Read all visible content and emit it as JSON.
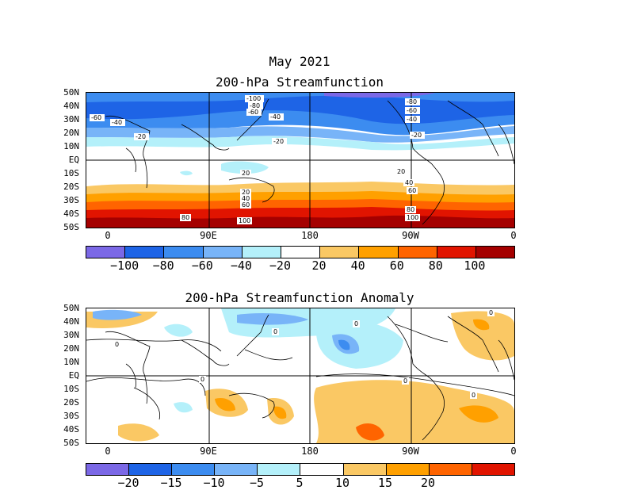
{
  "header": {
    "date": "May 2021"
  },
  "top_panel": {
    "title": "200-hPa Streamfunction",
    "lat_labels": [
      "50N",
      "40N",
      "30N",
      "20N",
      "10N",
      "EQ",
      "10S",
      "20S",
      "30S",
      "40S",
      "50S"
    ],
    "lon_labels": [
      "0",
      "90E",
      "180",
      "90W",
      "0"
    ],
    "colorbar": {
      "colors": [
        "#7b68e6",
        "#1e64e6",
        "#3c8cf0",
        "#78b4f8",
        "#b4f0fa",
        "#ffffff",
        "#fac864",
        "#ffa000",
        "#ff6400",
        "#e11400",
        "#a50000"
      ],
      "labels": [
        "-100",
        "-80",
        "-60",
        "-40",
        "-20",
        "20",
        "40",
        "60",
        "80",
        "100"
      ]
    },
    "contour_labels": [
      "-100",
      "-80",
      "-60",
      "-40",
      "-20",
      "-60",
      "-40",
      "-20",
      "-80",
      "-60",
      "-40",
      "-20",
      "20",
      "20",
      "40",
      "60",
      "20",
      "40",
      "60",
      "80",
      "100",
      "80",
      "100"
    ]
  },
  "bottom_panel": {
    "title": "200-hPa Streamfunction Anomaly",
    "lat_labels": [
      "50N",
      "40N",
      "30N",
      "20N",
      "10N",
      "EQ",
      "10S",
      "20S",
      "30S",
      "40S",
      "50S"
    ],
    "lon_labels": [
      "0",
      "90E",
      "180",
      "90W",
      "0"
    ],
    "colorbar": {
      "colors": [
        "#7b68e6",
        "#1e64e6",
        "#3c8cf0",
        "#78b4f8",
        "#b4f0fa",
        "#ffffff",
        "#fac864",
        "#ffa000",
        "#ff6400",
        "#e11400"
      ],
      "labels": [
        "-20",
        "-15",
        "-10",
        "-5",
        "5",
        "10",
        "15",
        "20"
      ]
    },
    "contour_labels": [
      "0",
      "0",
      "0",
      "0",
      "0",
      "0",
      "0"
    ]
  }
}
